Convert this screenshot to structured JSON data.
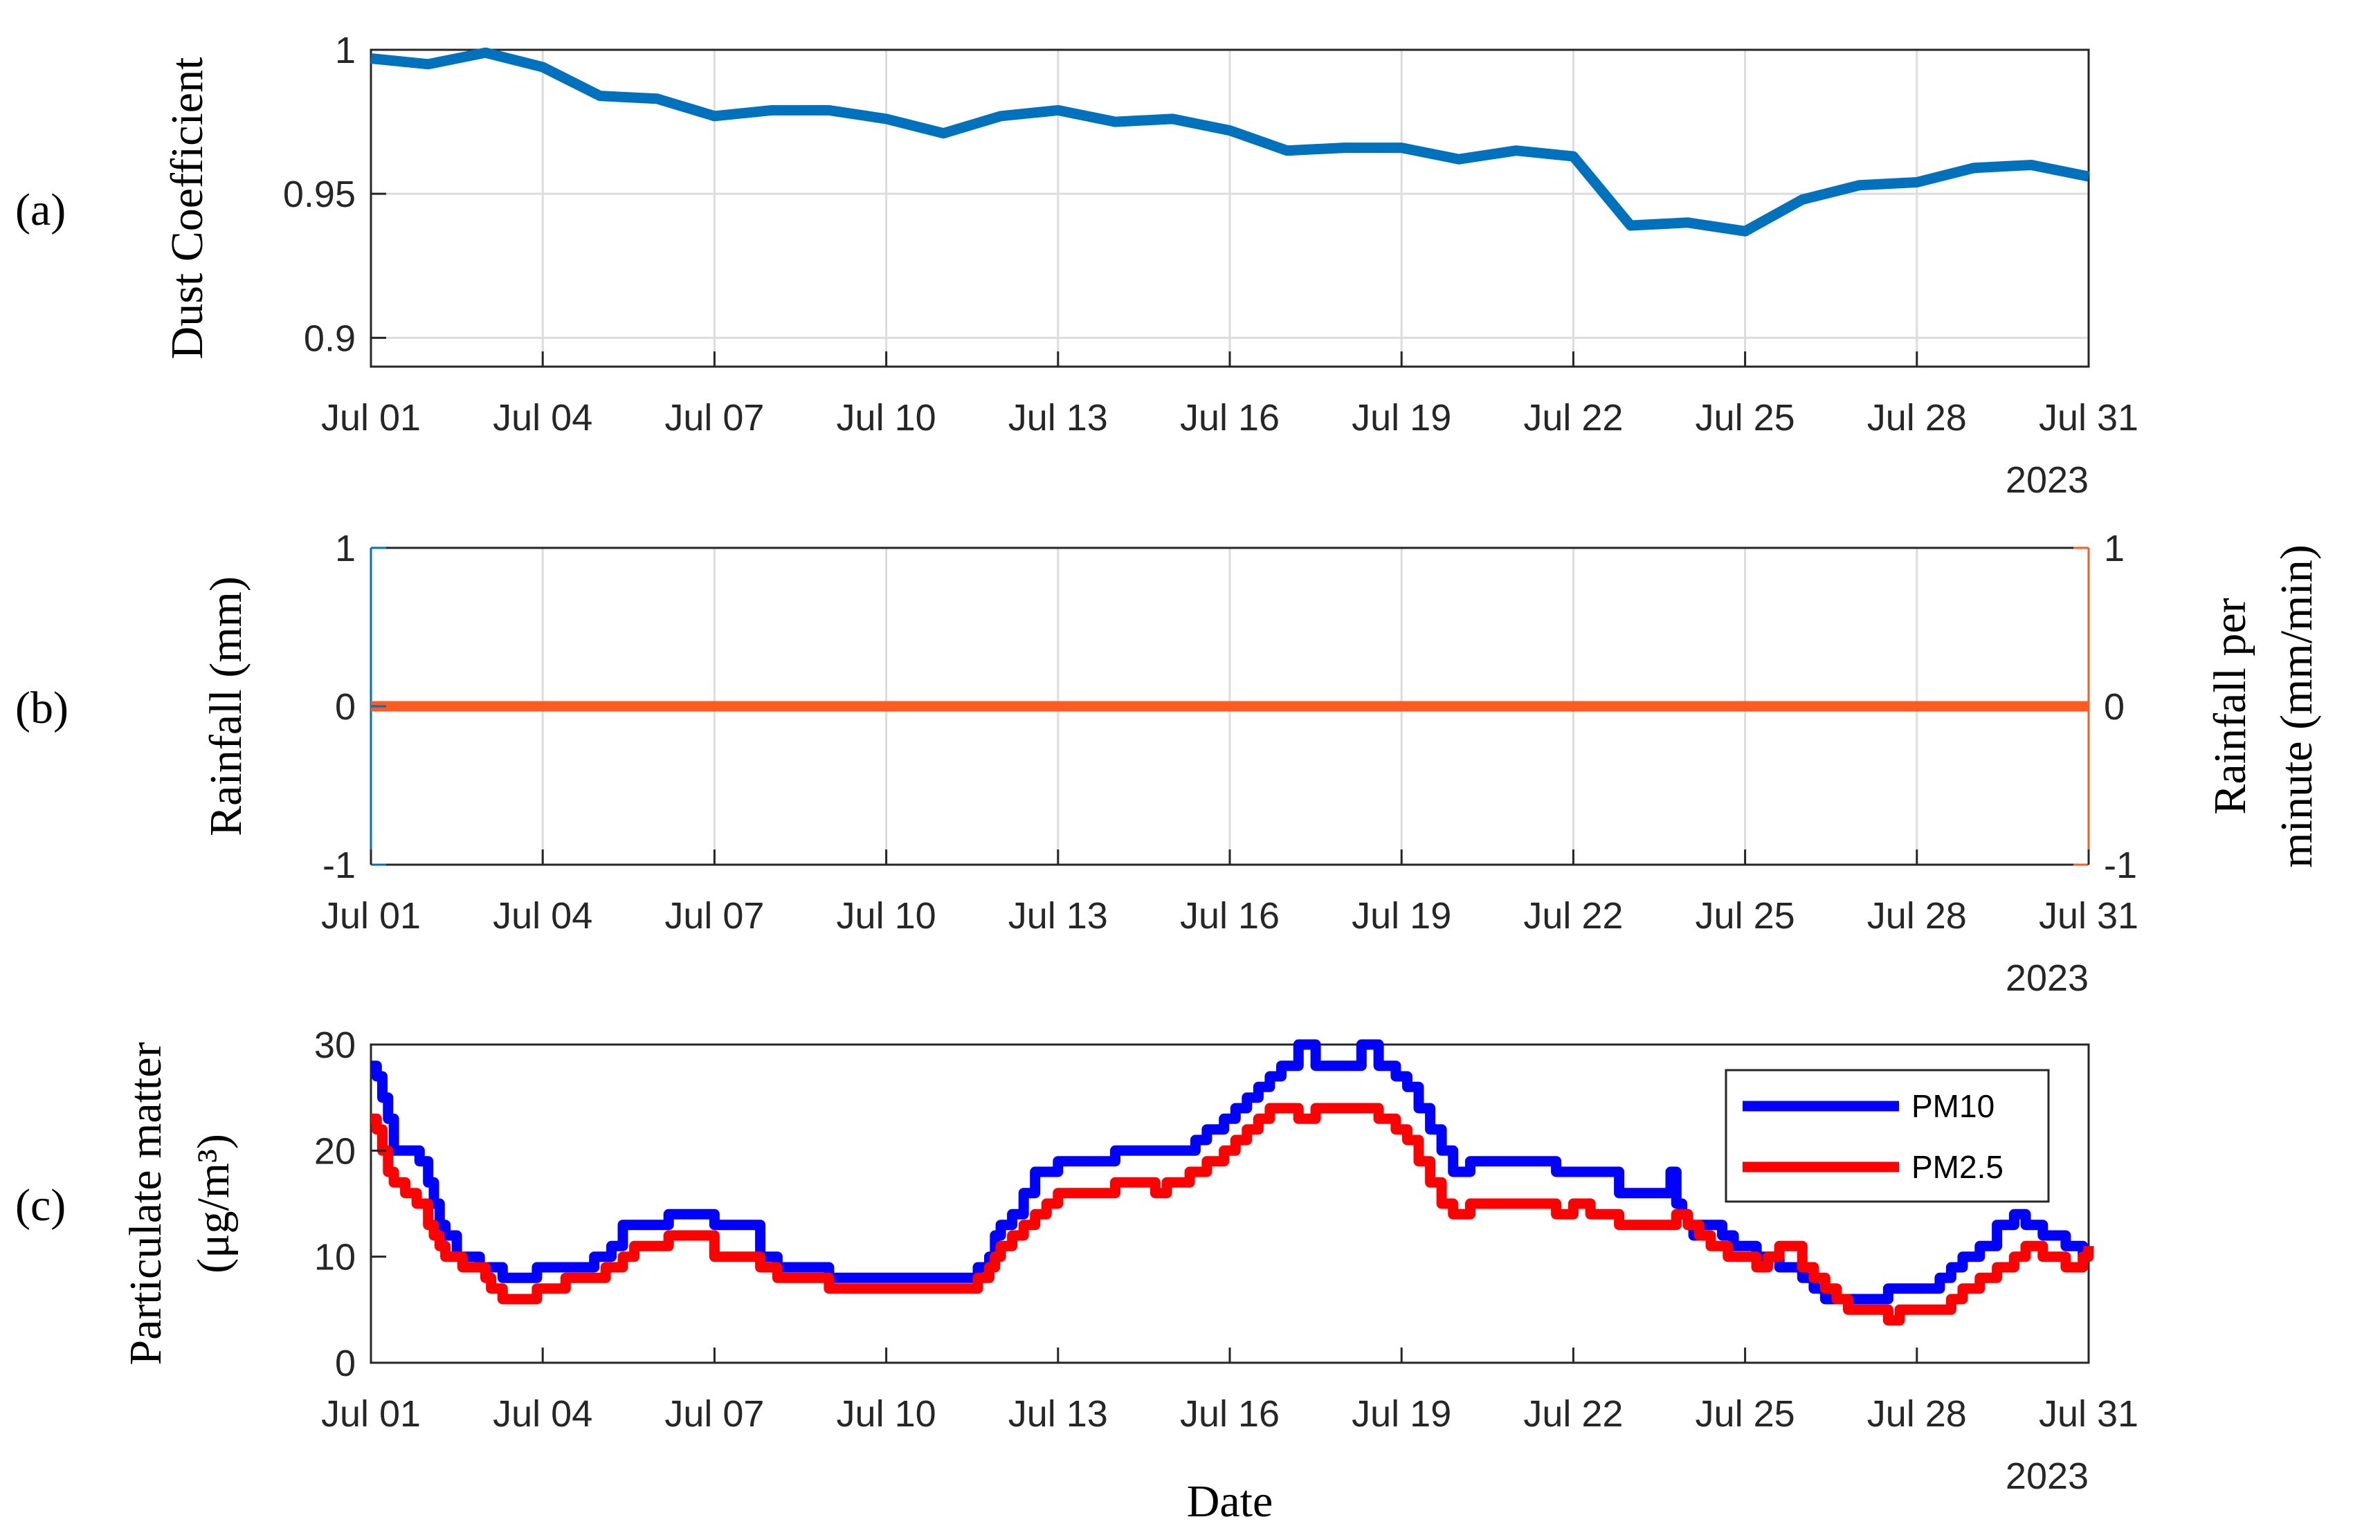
{
  "chart_data": [
    {
      "type": "line",
      "panel_label": "(a)",
      "ylabel": "Dust Coefficient",
      "xlabel": "",
      "year_label": "2023",
      "ylim": [
        0.89,
        1.0
      ],
      "yticks": [
        0.9,
        0.95,
        1
      ],
      "ytick_labels": [
        "0.9",
        "0.95",
        "1"
      ],
      "xlim": [
        1,
        31
      ],
      "xticks": [
        1,
        4,
        7,
        10,
        13,
        16,
        19,
        22,
        25,
        28,
        31
      ],
      "xtick_labels": [
        "Jul 01",
        "Jul 04",
        "Jul 07",
        "Jul 10",
        "Jul 13",
        "Jul 16",
        "Jul 19",
        "Jul 22",
        "Jul 25",
        "Jul 28",
        "Jul 31"
      ],
      "grid": true,
      "series": [
        {
          "color": "#0072bd",
          "x": [
            1,
            2,
            3,
            4,
            5,
            6,
            7,
            8,
            9,
            10,
            11,
            12,
            13,
            14,
            15,
            16,
            17,
            18,
            19,
            20,
            21,
            22,
            23,
            24,
            25,
            26,
            27,
            28,
            29,
            30,
            31
          ],
          "y": [
            0.997,
            0.995,
            0.999,
            0.994,
            0.984,
            0.983,
            0.977,
            0.979,
            0.979,
            0.976,
            0.971,
            0.977,
            0.979,
            0.975,
            0.976,
            0.972,
            0.965,
            0.966,
            0.966,
            0.962,
            0.965,
            0.963,
            0.939,
            0.94,
            0.937,
            0.948,
            0.953,
            0.954,
            0.959,
            0.96,
            0.956
          ]
        }
      ]
    },
    {
      "type": "line",
      "panel_label": "(b)",
      "ylabel": "Rainfall (mm)",
      "ylabel_right": [
        "Rainfall per",
        "minute (mm/min)"
      ],
      "xlabel": "",
      "year_label": "2023",
      "ylim": [
        -1,
        1
      ],
      "yticks": [
        -1,
        0,
        1
      ],
      "ytick_labels": [
        "-1",
        "0",
        "1"
      ],
      "ylim_right": [
        -1,
        1
      ],
      "yticks_right": [
        -1,
        0,
        1
      ],
      "ytick_labels_right": [
        "-1",
        "0",
        "1"
      ],
      "left_axis_color": "#0072bd",
      "right_axis_color": "#ff5a1f",
      "xlim": [
        1,
        31
      ],
      "xticks": [
        1,
        4,
        7,
        10,
        13,
        16,
        19,
        22,
        25,
        28,
        31
      ],
      "xtick_labels": [
        "Jul 01",
        "Jul 04",
        "Jul 07",
        "Jul 10",
        "Jul 13",
        "Jul 16",
        "Jul 19",
        "Jul 22",
        "Jul 25",
        "Jul 28",
        "Jul 31"
      ],
      "grid": true,
      "series": [
        {
          "color": "#0072bd",
          "axis": "left",
          "x": [
            1,
            31
          ],
          "y": [
            0,
            0
          ]
        },
        {
          "color": "#ff5a1f",
          "axis": "right",
          "x": [
            1,
            31
          ],
          "y": [
            0,
            0
          ]
        }
      ]
    },
    {
      "type": "line",
      "panel_label": "(c)",
      "ylabel": [
        "Particulate matter",
        "(μg/m³)"
      ],
      "xlabel": "Date",
      "year_label": "2023",
      "ylim": [
        0,
        30
      ],
      "yticks": [
        0,
        10,
        20,
        30
      ],
      "ytick_labels": [
        "0",
        "10",
        "20",
        "30"
      ],
      "xlim": [
        1,
        31
      ],
      "xticks": [
        1,
        4,
        7,
        10,
        13,
        16,
        19,
        22,
        25,
        28,
        31
      ],
      "xtick_labels": [
        "Jul 01",
        "Jul 04",
        "Jul 07",
        "Jul 10",
        "Jul 13",
        "Jul 16",
        "Jul 19",
        "Jul 22",
        "Jul 25",
        "Jul 28",
        "Jul 31"
      ],
      "grid": false,
      "legend_placement": "top-right",
      "series": [
        {
          "name": "PM10",
          "color": "#0000ff",
          "step": true,
          "x": [
            1.0,
            1.1,
            1.2,
            1.3,
            1.4,
            1.7,
            1.85,
            2.0,
            2.1,
            2.2,
            2.3,
            2.5,
            2.9,
            3.3,
            3.6,
            3.9,
            4.3,
            4.6,
            4.9,
            5.0,
            5.2,
            5.4,
            6.2,
            7.0,
            7.8,
            8.1,
            9.0,
            10.0,
            10.9,
            11.6,
            11.8,
            11.9,
            12.0,
            12.2,
            12.4,
            12.6,
            13.0,
            14.0,
            14.8,
            15.0,
            15.4,
            15.6,
            15.9,
            16.1,
            16.3,
            16.5,
            16.7,
            16.9,
            17.2,
            17.5,
            18.3,
            18.6,
            18.9,
            19.1,
            19.3,
            19.5,
            19.7,
            19.9,
            20.2,
            21.0,
            21.7,
            22.8,
            23.6,
            23.7,
            23.8,
            23.9,
            24.0,
            24.1,
            24.2,
            24.4,
            24.6,
            24.8,
            25.2,
            25.6,
            26.0,
            26.2,
            26.4,
            26.6,
            26.8,
            27.0,
            27.5,
            28.4,
            28.6,
            28.8,
            29.1,
            29.4,
            29.7,
            29.9,
            30.1,
            30.2,
            30.6,
            30.9,
            31.0
          ],
          "y": [
            28,
            27,
            25,
            23,
            20,
            20,
            19,
            17,
            15,
            13,
            12,
            10,
            9,
            8,
            8,
            9,
            9,
            9,
            10,
            10,
            11,
            13,
            14,
            13,
            10,
            9,
            8,
            8,
            8,
            9,
            10,
            12,
            13,
            14,
            16,
            18,
            19,
            20,
            20,
            20,
            21,
            22,
            23,
            24,
            25,
            26,
            27,
            28,
            30,
            28,
            30,
            28,
            27,
            26,
            24,
            22,
            20,
            18,
            19,
            19,
            18,
            16,
            16,
            18,
            15,
            14,
            13,
            12,
            13,
            13,
            12,
            11,
            10,
            9,
            8,
            7,
            6,
            6,
            6,
            6,
            7,
            8,
            9,
            10,
            11,
            13,
            14,
            13,
            13,
            12,
            11,
            10,
            10
          ]
        },
        {
          "name": "PM2.5",
          "color": "#ff0000",
          "step": true,
          "x": [
            1.0,
            1.1,
            1.2,
            1.3,
            1.4,
            1.6,
            1.8,
            2.0,
            2.1,
            2.2,
            2.3,
            2.6,
            3.0,
            3.1,
            3.3,
            3.9,
            4.4,
            4.9,
            5.1,
            5.4,
            5.6,
            6.2,
            7.0,
            7.8,
            8.1,
            9.0,
            10.0,
            10.9,
            11.6,
            11.8,
            11.9,
            12.0,
            12.2,
            12.4,
            12.6,
            12.8,
            13.0,
            13.6,
            14.0,
            14.5,
            14.7,
            14.9,
            15.3,
            15.6,
            15.9,
            16.1,
            16.3,
            16.5,
            16.7,
            16.9,
            17.2,
            17.5,
            18.3,
            18.6,
            18.9,
            19.1,
            19.3,
            19.5,
            19.7,
            19.9,
            20.2,
            21.0,
            21.7,
            22.0,
            22.3,
            22.8,
            23.6,
            23.8,
            24.0,
            24.2,
            24.4,
            24.7,
            25.2,
            25.4,
            25.6,
            26.0,
            26.2,
            26.4,
            26.6,
            26.8,
            27.0,
            27.5,
            27.7,
            28.4,
            28.6,
            28.8,
            29.1,
            29.4,
            29.7,
            29.9,
            30.1,
            30.2,
            30.6,
            30.9,
            31.0
          ],
          "y": [
            23,
            22,
            20,
            18,
            17,
            16,
            15,
            13,
            12,
            11,
            10,
            9,
            8,
            7,
            6,
            7,
            8,
            8,
            9,
            10,
            11,
            12,
            10,
            9,
            8,
            7,
            7,
            7,
            8,
            9,
            10,
            11,
            12,
            13,
            14,
            15,
            16,
            16,
            17,
            17,
            16,
            17,
            18,
            19,
            20,
            21,
            22,
            23,
            24,
            24,
            23,
            24,
            24,
            23,
            22,
            21,
            19,
            17,
            15,
            14,
            15,
            15,
            14,
            15,
            14,
            13,
            13,
            14,
            13,
            12,
            11,
            10,
            9,
            10,
            11,
            9,
            8,
            7,
            6,
            5,
            5,
            4,
            5,
            5,
            6,
            7,
            8,
            9,
            10,
            11,
            11,
            10,
            9,
            10,
            11
          ]
        }
      ]
    }
  ]
}
